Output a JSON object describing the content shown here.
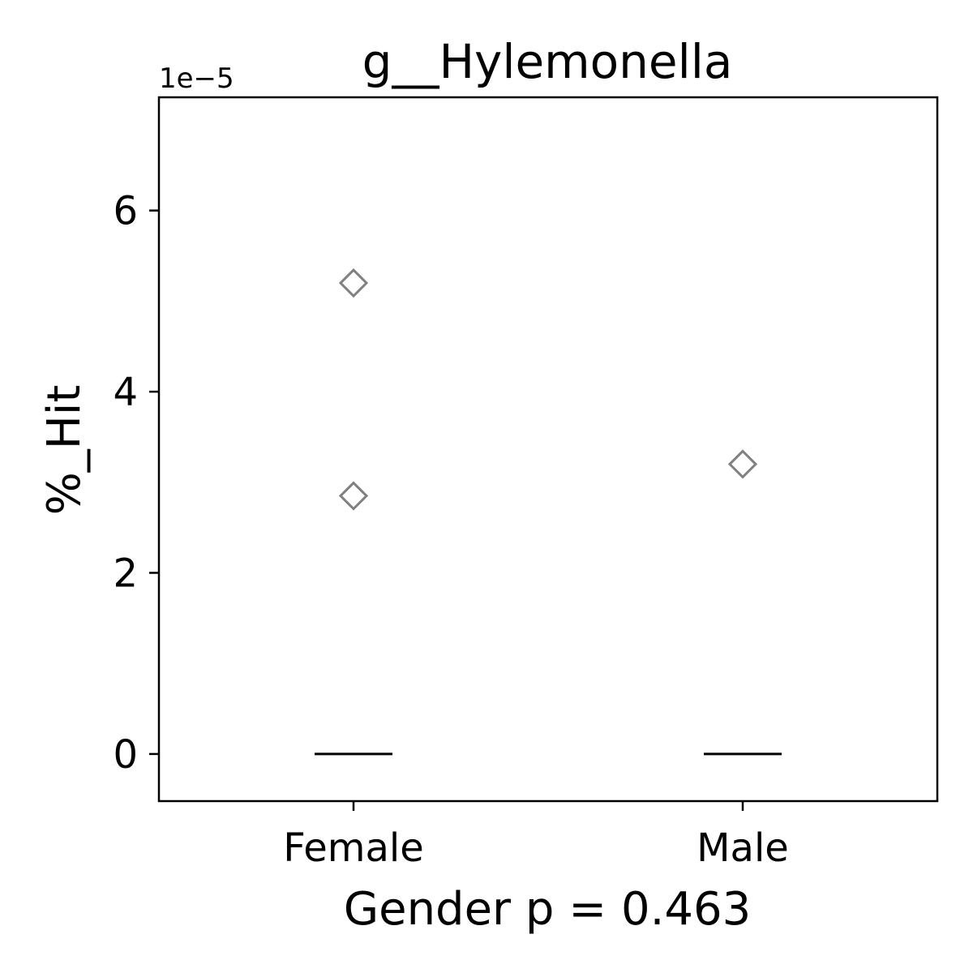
{
  "chart_data": {
    "type": "box",
    "title": "g__Hylemonella",
    "xlabel": "Gender p = 0.463",
    "ylabel": "%_Hit",
    "y_offset_label": "1e−5",
    "y_scale": 1e-05,
    "ylim": [
      -5.2e-06,
      7.25e-05
    ],
    "yticks": [
      0,
      2e-05,
      4e-05,
      6e-05
    ],
    "ytick_labels": [
      "0",
      "2",
      "4",
      "6"
    ],
    "categories": [
      "Female",
      "Male"
    ],
    "boxes": [
      {
        "category": "Female",
        "q1": 0,
        "median": 0,
        "q3": 0,
        "whisker_low": 0,
        "whisker_high": 0,
        "outliers": [
          5.2e-05,
          2.85e-05
        ]
      },
      {
        "category": "Male",
        "q1": 0,
        "median": 0,
        "q3": 0,
        "whisker_low": 0,
        "whisker_high": 0,
        "outliers": [
          3.2e-05
        ]
      }
    ],
    "colors": {
      "outlier": "#808080",
      "median": "#000000",
      "frame": "#000000"
    },
    "grid": false
  }
}
